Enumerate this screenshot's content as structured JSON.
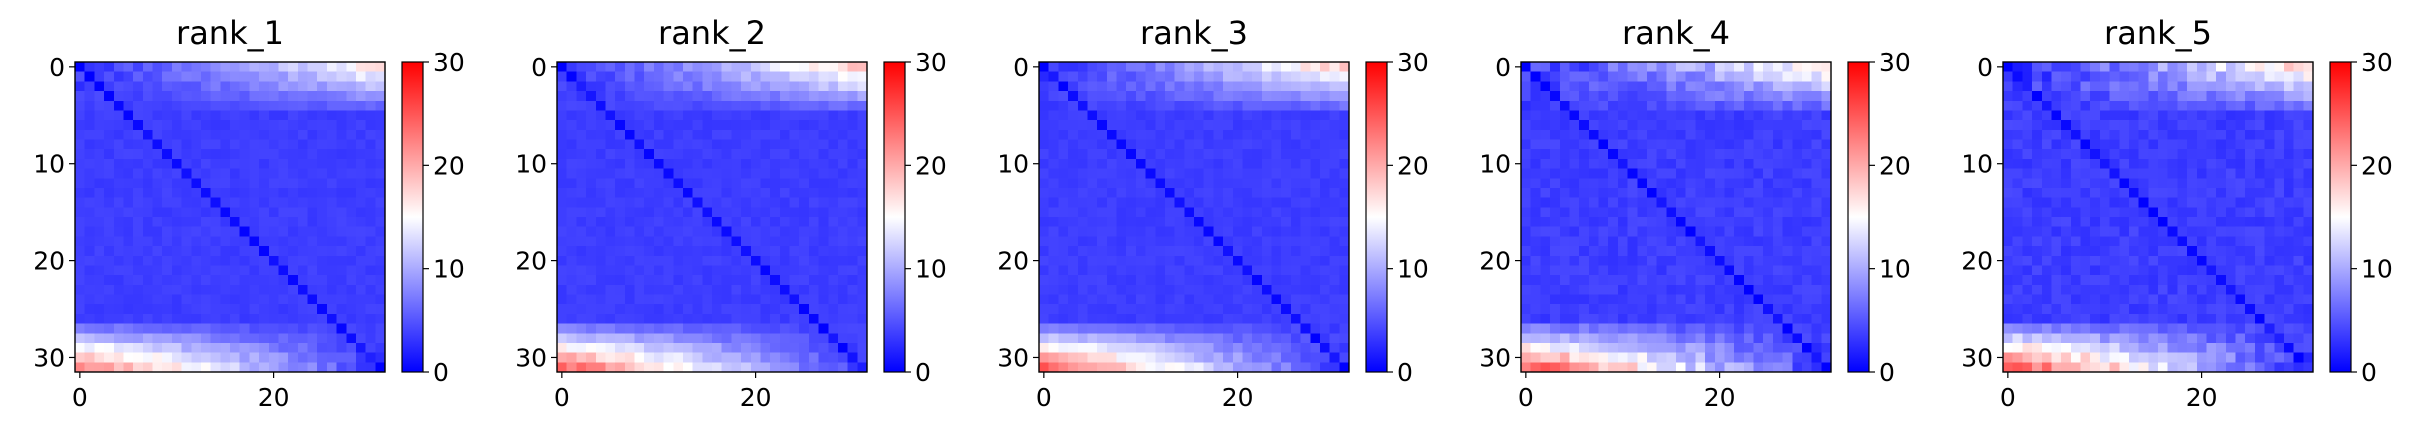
{
  "chart_data": {
    "type": "heatmap",
    "grid_size": 32,
    "colormap": {
      "name": "bwr",
      "low": "#0000ff",
      "mid": "#ffffff",
      "high": "#ff0000"
    },
    "value_range": [
      0,
      30
    ],
    "x_ticks": [
      0,
      20
    ],
    "y_ticks": [
      0,
      10,
      20,
      30
    ],
    "colorbar_ticks": [
      0,
      10,
      20,
      30
    ],
    "panels": [
      {
        "title": "rank_1",
        "top_right_level": 0.55,
        "bottom_left_level": 0.75,
        "noise": 0.05,
        "seed": 11
      },
      {
        "title": "rank_2",
        "top_right_level": 0.62,
        "bottom_left_level": 0.8,
        "noise": 0.05,
        "seed": 23
      },
      {
        "title": "rank_3",
        "top_right_level": 0.6,
        "bottom_left_level": 0.8,
        "noise": 0.05,
        "seed": 37
      },
      {
        "title": "rank_4",
        "top_right_level": 0.56,
        "bottom_left_level": 0.82,
        "noise": 0.08,
        "seed": 41
      },
      {
        "title": "rank_5",
        "top_right_level": 0.6,
        "bottom_left_level": 0.85,
        "noise": 0.09,
        "seed": 53
      }
    ]
  }
}
